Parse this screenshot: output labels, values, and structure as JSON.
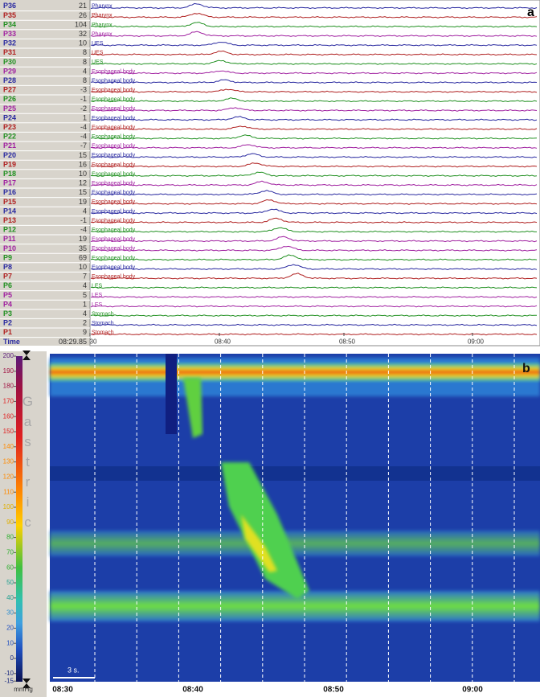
{
  "panel_a": {
    "label": "a",
    "channels": [
      {
        "name": "P36",
        "value": 21,
        "region": "Pharynx",
        "color": "#2a2aa0"
      },
      {
        "name": "P35",
        "value": 26,
        "region": "Pharynx",
        "color": "#b02020"
      },
      {
        "name": "P34",
        "value": 104,
        "region": "Pharynx",
        "color": "#209020"
      },
      {
        "name": "P33",
        "value": 32,
        "region": "Pharynx",
        "color": "#a020a0"
      },
      {
        "name": "P32",
        "value": 10,
        "region": "UES",
        "color": "#2a2aa0"
      },
      {
        "name": "P31",
        "value": 8,
        "region": "UES",
        "color": "#b02020"
      },
      {
        "name": "P30",
        "value": 8,
        "region": "UES",
        "color": "#209020"
      },
      {
        "name": "P29",
        "value": 4,
        "region": "Esophageal body",
        "color": "#a020a0"
      },
      {
        "name": "P28",
        "value": 8,
        "region": "Esophageal body",
        "color": "#2a2aa0"
      },
      {
        "name": "P27",
        "value": -3,
        "region": "Esophageal body",
        "color": "#b02020"
      },
      {
        "name": "P26",
        "value": -1,
        "region": "Esophageal body",
        "color": "#209020"
      },
      {
        "name": "P25",
        "value": -2,
        "region": "Esophageal body",
        "color": "#a020a0"
      },
      {
        "name": "P24",
        "value": 1,
        "region": "Esophageal body",
        "color": "#2a2aa0"
      },
      {
        "name": "P23",
        "value": -4,
        "region": "Esophageal body",
        "color": "#b02020"
      },
      {
        "name": "P22",
        "value": -4,
        "region": "Esophageal body",
        "color": "#209020"
      },
      {
        "name": "P21",
        "value": -7,
        "region": "Esophageal body",
        "color": "#a020a0"
      },
      {
        "name": "P20",
        "value": 15,
        "region": "Esophageal body",
        "color": "#2a2aa0"
      },
      {
        "name": "P19",
        "value": 16,
        "region": "Esophageal body",
        "color": "#b02020"
      },
      {
        "name": "P18",
        "value": 10,
        "region": "Esophageal body",
        "color": "#209020"
      },
      {
        "name": "P17",
        "value": 12,
        "region": "Esophageal body",
        "color": "#a020a0"
      },
      {
        "name": "P16",
        "value": 15,
        "region": "Esophageal body",
        "color": "#2a2aa0"
      },
      {
        "name": "P15",
        "value": 19,
        "region": "Esophageal body",
        "color": "#b02020"
      },
      {
        "name": "P14",
        "value": 4,
        "region": "Esophageal body",
        "color": "#2a2aa0"
      },
      {
        "name": "P13",
        "value": -1,
        "region": "Esophageal body",
        "color": "#b02020"
      },
      {
        "name": "P12",
        "value": -4,
        "region": "Esophageal body",
        "color": "#209020"
      },
      {
        "name": "P11",
        "value": 19,
        "region": "Esophageal body",
        "color": "#a020a0"
      },
      {
        "name": "P10",
        "value": 35,
        "region": "Esophageal body",
        "color": "#a020a0"
      },
      {
        "name": "P9",
        "value": 69,
        "region": "Esophageal body",
        "color": "#209020"
      },
      {
        "name": "P8",
        "value": 10,
        "region": "Esophageal body",
        "color": "#2a2aa0"
      },
      {
        "name": "P7",
        "value": 7,
        "region": "Esophageal body",
        "color": "#b02020"
      },
      {
        "name": "P6",
        "value": 4,
        "region": "LES",
        "color": "#209020"
      },
      {
        "name": "P5",
        "value": 5,
        "region": "LES",
        "color": "#a020a0"
      },
      {
        "name": "P4",
        "value": 1,
        "region": "LES",
        "color": "#a020a0"
      },
      {
        "name": "P3",
        "value": 4,
        "region": "Stomach",
        "color": "#209020"
      },
      {
        "name": "P2",
        "value": 2,
        "region": "Stomach",
        "color": "#2a2aa0"
      },
      {
        "name": "P1",
        "value": 9,
        "region": "Stomach",
        "color": "#b02020"
      }
    ],
    "time": {
      "name": "Time",
      "value": "08:29.85"
    },
    "x_labels": [
      "30",
      "08:40",
      "08:50",
      "09:00"
    ]
  },
  "panel_b": {
    "label": "b",
    "scale": {
      "ticks": [
        200,
        190,
        180,
        170,
        160,
        150,
        140,
        130,
        120,
        110,
        100,
        90,
        80,
        70,
        60,
        50,
        40,
        30,
        20,
        10,
        0,
        -10,
        -15
      ],
      "title": "Gastric",
      "unit": "mmHg"
    },
    "scale_bar": "3 s.",
    "x_labels": [
      "08:30",
      "08:40",
      "08:50",
      "09:00"
    ]
  }
}
